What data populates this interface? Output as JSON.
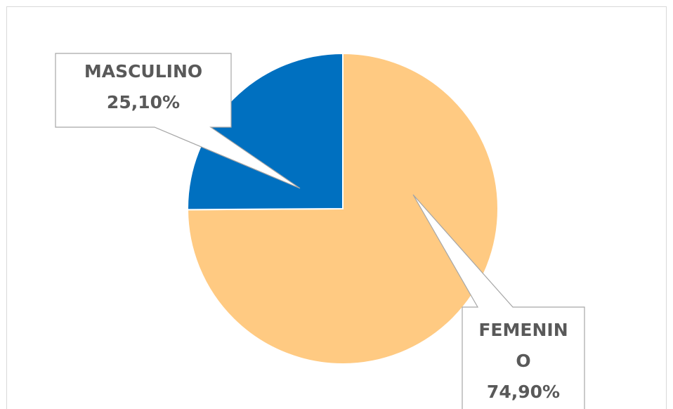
{
  "chart_data": {
    "type": "pie",
    "categories": [
      "FEMENINO",
      "MASCULINO"
    ],
    "values": [
      74.9,
      25.1
    ],
    "value_labels": [
      "74,90%",
      "25,10%"
    ],
    "colors": [
      "#ffca82",
      "#0070c0"
    ]
  }
}
